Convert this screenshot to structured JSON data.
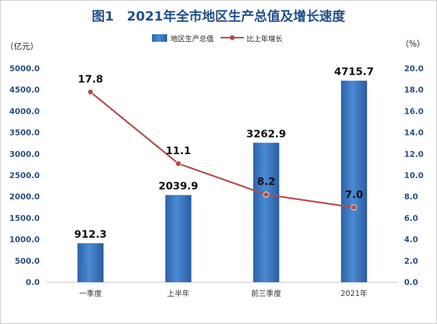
{
  "chart_data": {
    "type": "bar",
    "title": "图1　2021年全市地区生产总值及增长速度",
    "categories": [
      "一季度",
      "上半年",
      "前三季度",
      "2021年"
    ],
    "ylabel_left": "（亿元）",
    "ylabel_right": "（%）",
    "ylim_left": [
      0,
      5000
    ],
    "ylim_right": [
      0,
      20
    ],
    "yticks_left": [
      "5000.0",
      "4500.0",
      "4000.0",
      "3500.0",
      "3000.0",
      "2500.0",
      "2000.0",
      "1500.0",
      "1000.0",
      "500.0",
      "0.0"
    ],
    "yticks_right": [
      "20.0",
      "18.0",
      "16.0",
      "14.0",
      "12.0",
      "10.0",
      "8.0",
      "6.0",
      "4.0",
      "2.0",
      "0.0"
    ],
    "legend_placement": "top-center",
    "grid": false,
    "series": [
      {
        "name": "地区生产总值",
        "type": "bar",
        "axis": "left",
        "values": [
          912.3,
          2039.9,
          3262.9,
          4715.7
        ],
        "labels": [
          "912.3",
          "2039.9",
          "3262.9",
          "4715.7"
        ],
        "color": "#3a78c0"
      },
      {
        "name": "比上年增长",
        "type": "line",
        "axis": "right",
        "values": [
          17.8,
          11.1,
          8.2,
          7.0
        ],
        "labels": [
          "17.8",
          "11.1",
          "8.2",
          "7.0"
        ],
        "color": "#b94a4a"
      }
    ]
  }
}
